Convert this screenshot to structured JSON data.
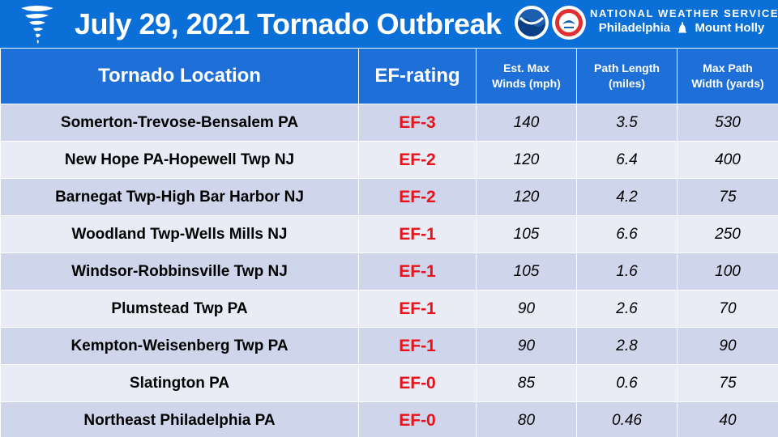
{
  "header": {
    "title": "July 29, 2021 Tornado Outbreak",
    "org_line1": "NATIONAL WEATHER SERVICE",
    "office_left": "Philadelphia",
    "office_right": "Mount Holly",
    "logo_noaa_text": "NOAA",
    "colors": {
      "header_bg": "#0a6fd6",
      "table_header_bg": "#1f6fd8",
      "row_dark": "#cfd5ea",
      "row_light": "#e9ebf5",
      "rating_red": "#e8121b"
    }
  },
  "table": {
    "columns": [
      "Tornado Location",
      "EF-rating",
      "Est. Max Winds (mph)",
      "Path Length (miles)",
      "Max Path Width (yards)"
    ],
    "column_lines": {
      "winds": [
        "Est. Max",
        "Winds (mph)"
      ],
      "length": [
        "Path Length",
        "(miles)"
      ],
      "width": [
        "Max Path",
        "Width (yards)"
      ]
    },
    "rows": [
      {
        "location": "Somerton-Trevose-Bensalem PA",
        "rating": "EF-3",
        "winds": "140",
        "length": "3.5",
        "width": "530"
      },
      {
        "location": "New Hope PA-Hopewell Twp NJ",
        "rating": "EF-2",
        "winds": "120",
        "length": "6.4",
        "width": "400"
      },
      {
        "location": "Barnegat Twp-High Bar Harbor NJ",
        "rating": "EF-2",
        "winds": "120",
        "length": "4.2",
        "width": "75"
      },
      {
        "location": "Woodland Twp-Wells Mills NJ",
        "rating": "EF-1",
        "winds": "105",
        "length": "6.6",
        "width": "250"
      },
      {
        "location": "Windsor-Robbinsville Twp NJ",
        "rating": "EF-1",
        "winds": "105",
        "length": "1.6",
        "width": "100"
      },
      {
        "location": "Plumstead Twp PA",
        "rating": "EF-1",
        "winds": "90",
        "length": "2.6",
        "width": "70"
      },
      {
        "location": "Kempton-Weisenberg Twp PA",
        "rating": "EF-1",
        "winds": "90",
        "length": "2.8",
        "width": "90"
      },
      {
        "location": "Slatington PA",
        "rating": "EF-0",
        "winds": "85",
        "length": "0.6",
        "width": "75"
      },
      {
        "location": "Northeast Philadelphia PA",
        "rating": "EF-0",
        "winds": "80",
        "length": "0.46",
        "width": "40"
      }
    ]
  }
}
